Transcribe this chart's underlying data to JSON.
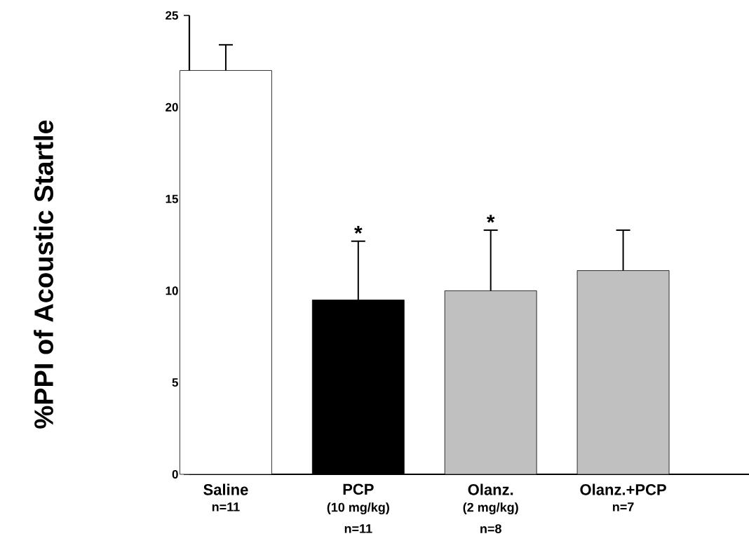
{
  "chart_data": {
    "type": "bar",
    "ylabel": "%PPI of Acoustic Startle",
    "categories": [
      "Saline",
      "PCP",
      "Olanz.",
      "Olanz.+PCP"
    ],
    "values": [
      22.0,
      9.5,
      10.0,
      11.1
    ],
    "errors": [
      [
        22.0,
        23.4
      ],
      [
        9.5,
        12.7
      ],
      [
        10.0,
        13.3
      ],
      [
        11.1,
        13.3
      ]
    ],
    "colors": [
      "#ffffff",
      "#000000",
      "#c0c0c0",
      "#c0c0c0"
    ],
    "ylim": [
      0,
      25
    ],
    "yticks": [
      0,
      5,
      10,
      15,
      20,
      25
    ],
    "grid": false,
    "annotations": [
      {
        "text": "*",
        "x": "PCP",
        "y": 12.7
      },
      {
        "text": "*",
        "x": "Olanz.",
        "y": 13.3
      },
      "n=11",
      "(10 mg/kg)",
      "n=11",
      "(2 mg/kg)",
      "n=8",
      "n=7"
    ]
  }
}
